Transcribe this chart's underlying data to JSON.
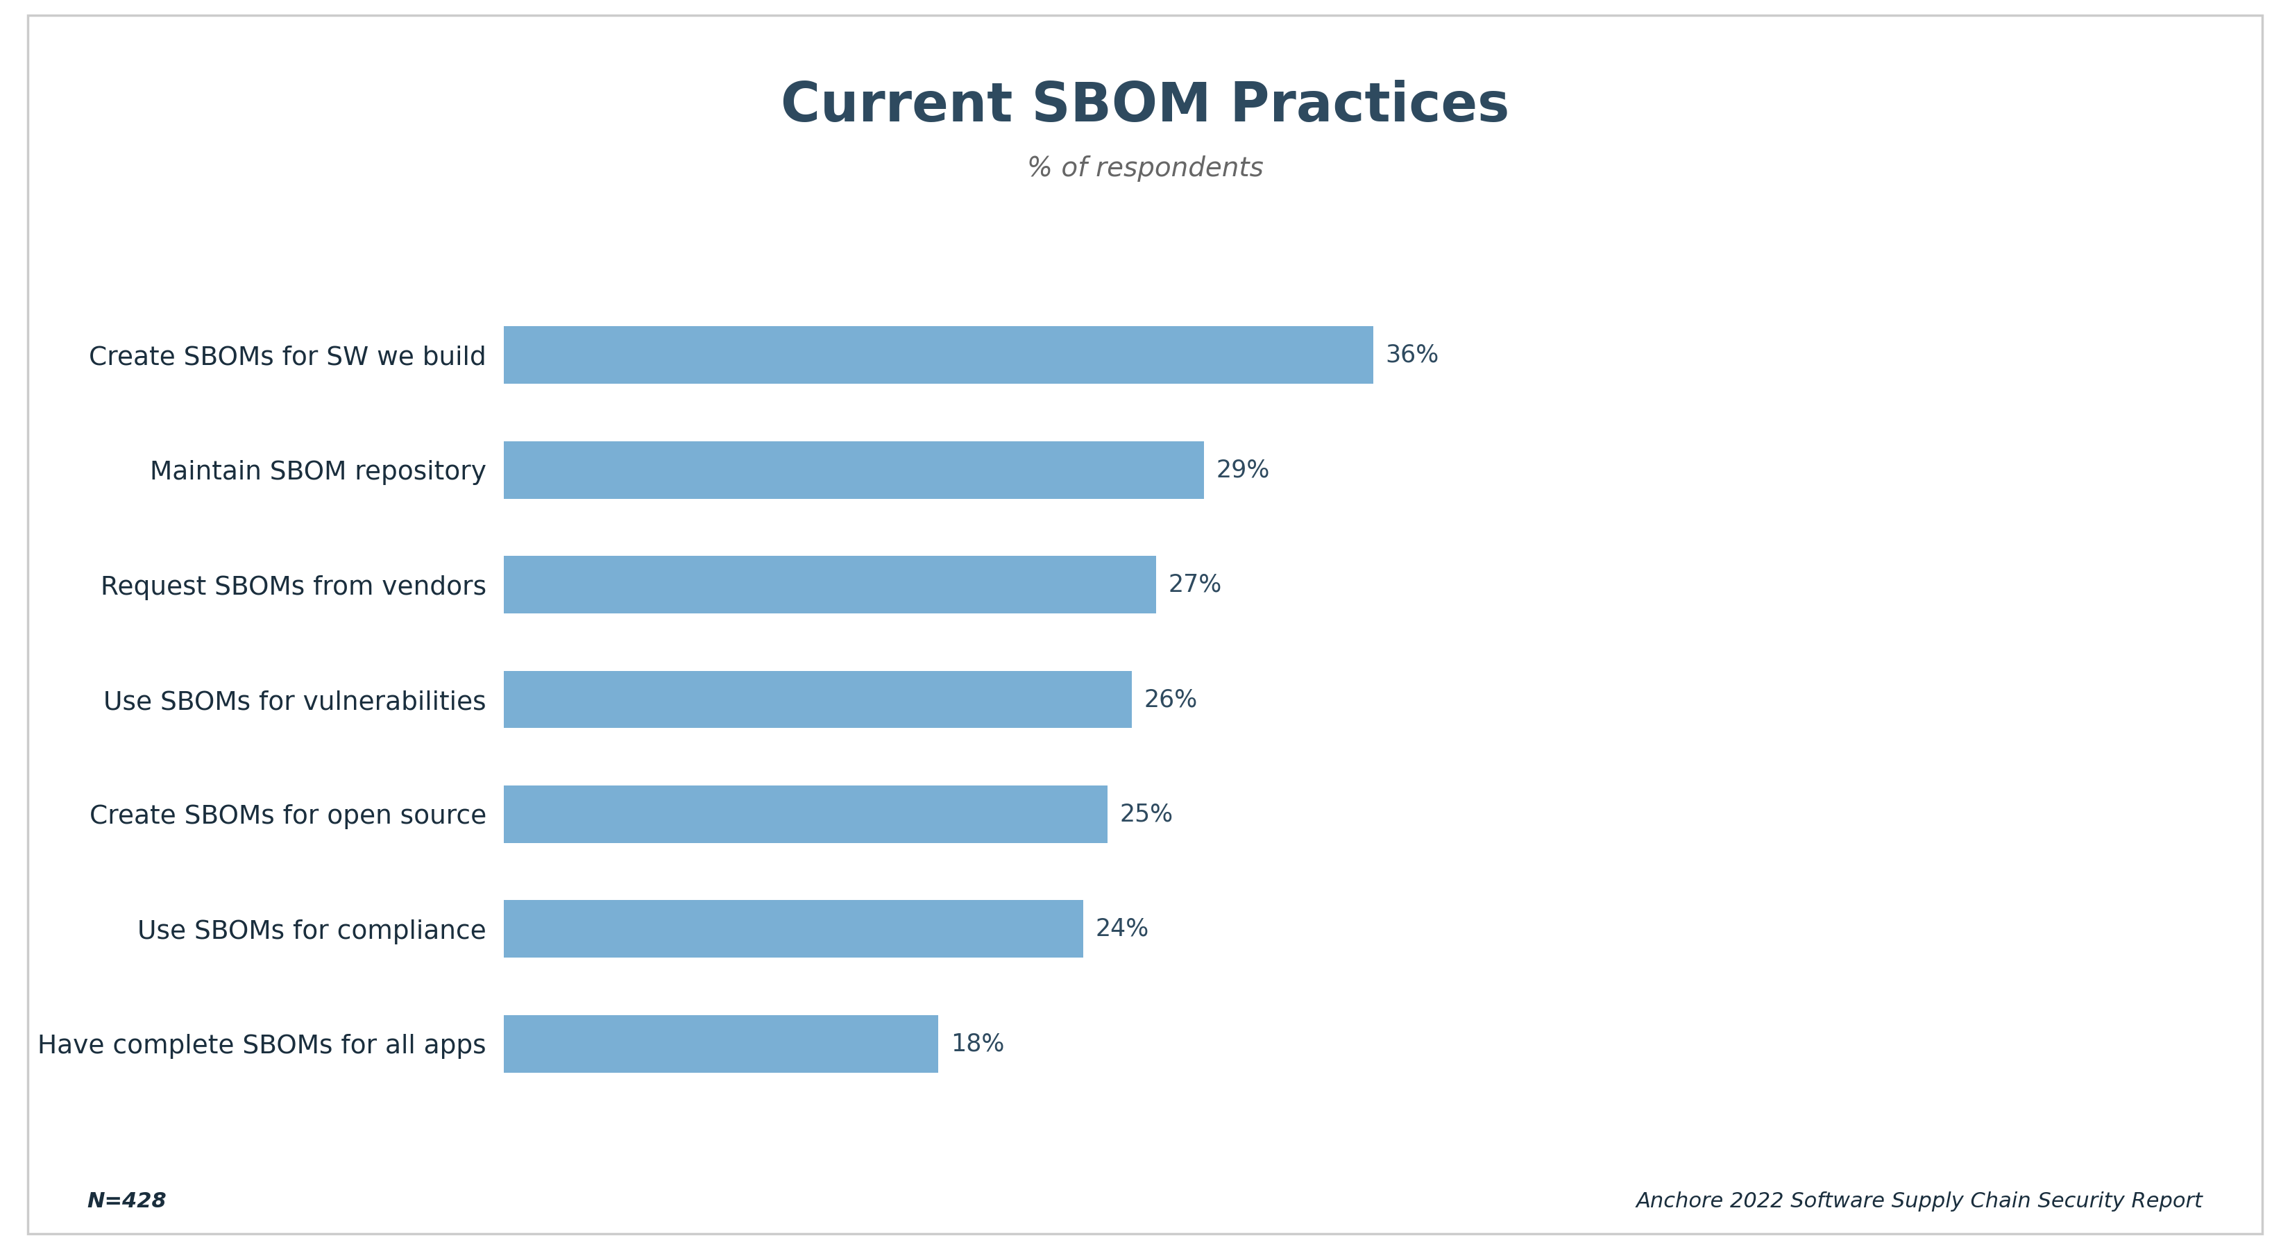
{
  "title": "Current SBOM Practices",
  "subtitle": "% of respondents",
  "categories": [
    "Create SBOMs for SW we build",
    "Maintain SBOM repository",
    "Request SBOMs from vendors",
    "Use SBOMs for vulnerabilities",
    "Create SBOMs for open source",
    "Use SBOMs for compliance",
    "Have complete SBOMs for all apps"
  ],
  "values": [
    36,
    29,
    27,
    26,
    25,
    24,
    18
  ],
  "bar_color": "#7aafd4",
  "title_color": "#2e4a5f",
  "subtitle_color": "#666666",
  "label_color": "#1a2e3d",
  "value_label_color": "#2e4a5f",
  "background_color": "#ffffff",
  "border_color": "#cccccc",
  "footnote_left": "N=428",
  "footnote_right": "Anchore 2022 Software Supply Chain Security Report",
  "xlim": [
    0,
    55
  ],
  "title_fontsize": 56,
  "subtitle_fontsize": 28,
  "label_fontsize": 27,
  "value_fontsize": 25,
  "footnote_fontsize": 22
}
